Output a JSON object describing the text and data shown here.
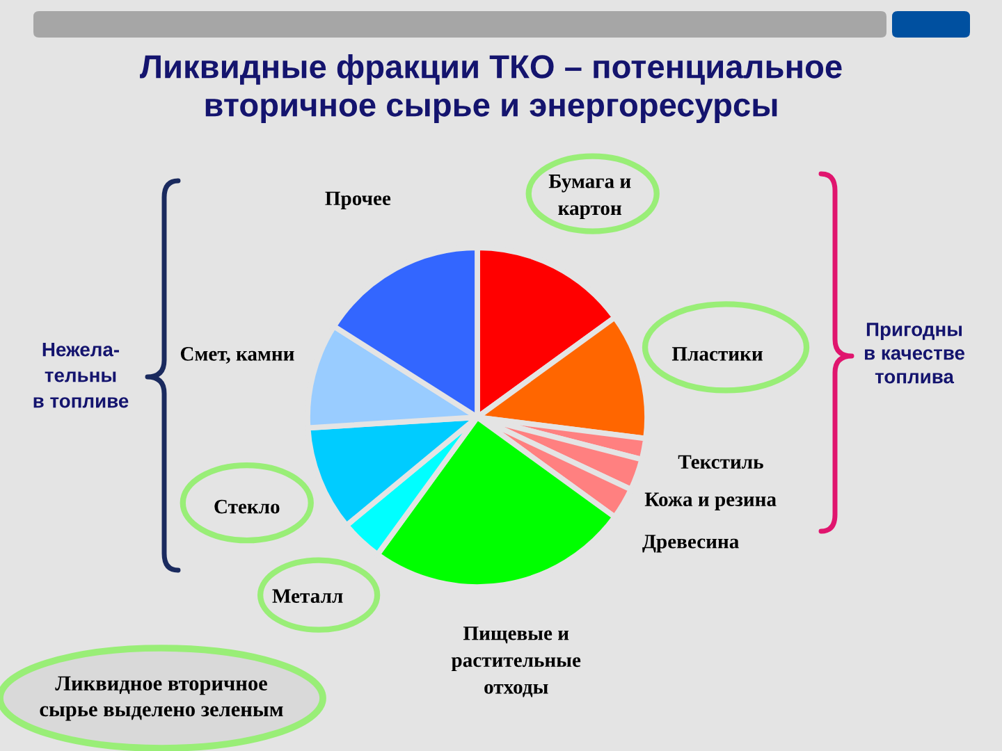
{
  "chart_data": {
    "type": "pie",
    "title": "Ликвидные фракции ТКО – потенциальное\nвторичное сырье и энергоресурсы",
    "categories": [
      "Бумага и\nкартон",
      "Пластики",
      "Текстиль",
      "Кожа и резина",
      "Древесина",
      "Пищевые и\nрастительные\nотходы",
      "Металл",
      "Стекло",
      "Смет, камни",
      "Прочее"
    ],
    "values": [
      15,
      12,
      2,
      3,
      3,
      25,
      4,
      10,
      10,
      16
    ],
    "colors": [
      "#ff0000",
      "#ff6600",
      "#ff8080",
      "#ff8080",
      "#ff8080",
      "#00ff00",
      "#00ffff",
      "#00ccff",
      "#99ccff",
      "#3366ff"
    ],
    "annotations": [
      "Нежела-\nтельны\nв топливе",
      "Пригодны\nв качестве\nтоплива",
      "Ликвидное вторичное\nсырье выделено зеленым"
    ]
  }
}
